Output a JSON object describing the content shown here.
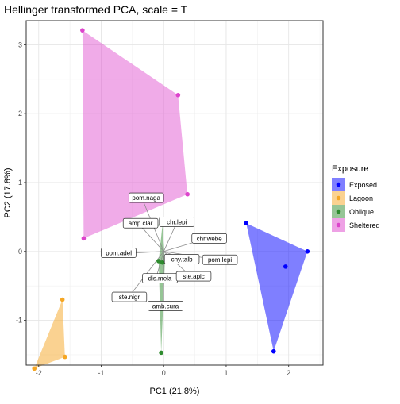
{
  "chart_data": {
    "type": "scatter",
    "title": "Hellinger transformed PCA, scale = T",
    "xlabel": "PC1 (21.8%)",
    "ylabel": "PC2 (17.8%)",
    "xlim": [
      -2.2,
      2.55
    ],
    "ylim": [
      -1.65,
      3.35
    ],
    "x_ticks": [
      -2,
      -1,
      0,
      1,
      2
    ],
    "y_ticks": [
      -1,
      0,
      1,
      2,
      3
    ],
    "grid": true,
    "legend": {
      "title": "Exposure",
      "position": "right",
      "entries": [
        "Exposed",
        "Lagoon",
        "Oblique",
        "Sheltered"
      ]
    },
    "series": [
      {
        "name": "Exposed",
        "color": "#0000ff",
        "points": [
          [
            1.32,
            0.41
          ],
          [
            2.3,
            0.0
          ],
          [
            1.95,
            -0.22
          ],
          [
            1.76,
            -1.45
          ]
        ]
      },
      {
        "name": "Lagoon",
        "color": "#f5a623",
        "points": [
          [
            -1.62,
            -0.7
          ],
          [
            -1.58,
            -1.53
          ],
          [
            -2.07,
            -1.7
          ]
        ]
      },
      {
        "name": "Oblique",
        "color": "#2e8b2e",
        "points": [
          [
            -0.12,
            0.38
          ],
          [
            -0.08,
            -0.14
          ],
          [
            -0.02,
            -0.16
          ],
          [
            -0.04,
            -1.47
          ]
        ]
      },
      {
        "name": "Sheltered",
        "color": "#dd44cc",
        "points": [
          [
            -1.3,
            3.21
          ],
          [
            0.23,
            2.27
          ],
          [
            0.38,
            0.83
          ],
          [
            -1.28,
            0.19
          ]
        ]
      }
    ],
    "hulls": [
      {
        "series": "Exposed",
        "points": [
          [
            1.32,
            0.41
          ],
          [
            2.3,
            0.0
          ],
          [
            1.76,
            -1.45
          ]
        ],
        "fill": "#0000ff",
        "opacity": 0.5
      },
      {
        "series": "Lagoon",
        "points": [
          [
            -1.62,
            -0.7
          ],
          [
            -1.58,
            -1.53
          ],
          [
            -2.07,
            -1.7
          ]
        ],
        "fill": "#f5a623",
        "opacity": 0.5
      },
      {
        "series": "Oblique",
        "points": [
          [
            -0.02,
            0.38
          ],
          [
            0.02,
            -0.14
          ],
          [
            -0.04,
            -1.47
          ],
          [
            -0.08,
            -0.14
          ]
        ],
        "fill": "#2e8b2e",
        "opacity": 0.5
      },
      {
        "series": "Sheltered",
        "points": [
          [
            -1.3,
            3.21
          ],
          [
            0.23,
            2.27
          ],
          [
            0.38,
            0.83
          ],
          [
            -1.28,
            0.19
          ]
        ],
        "fill": "#dd44cc",
        "opacity": 0.45
      }
    ],
    "loadings": [
      {
        "label": "pom.naga",
        "x": -0.35,
        "y": 0.78
      },
      {
        "label": "amp.clar",
        "x": -0.42,
        "y": 0.42
      },
      {
        "label": "chr.lepi",
        "x": 0.22,
        "y": 0.44
      },
      {
        "label": "chr.webe",
        "x": 0.55,
        "y": 0.15
      },
      {
        "label": "pom.adel",
        "x": -0.62,
        "y": -0.03
      },
      {
        "label": "chy.talb",
        "x": 0.28,
        "y": -0.1
      },
      {
        "label": "pom.lepi",
        "x": 0.78,
        "y": -0.11
      },
      {
        "label": "dis.mela",
        "x": -0.12,
        "y": -0.38
      },
      {
        "label": "ste.apic",
        "x": 0.42,
        "y": -0.35
      },
      {
        "label": "ste.nigr",
        "x": -0.55,
        "y": -0.65
      },
      {
        "label": "amb.cura",
        "x": 0.0,
        "y": -0.78
      }
    ],
    "loading_label_positions": [
      {
        "label": "pom.naga",
        "x": -0.28,
        "y": 0.78
      },
      {
        "label": "amp.clar",
        "x": -0.37,
        "y": 0.41
      },
      {
        "label": "chr.lepi",
        "x": 0.21,
        "y": 0.43
      },
      {
        "label": "chr.webe",
        "x": 0.73,
        "y": 0.19
      },
      {
        "label": "pom.adel",
        "x": -0.72,
        "y": -0.02
      },
      {
        "label": "chy.talb",
        "x": 0.29,
        "y": -0.11
      },
      {
        "label": "pom.lepi",
        "x": 0.9,
        "y": -0.12
      },
      {
        "label": "dis.mela",
        "x": -0.06,
        "y": -0.39
      },
      {
        "label": "ste.apic",
        "x": 0.48,
        "y": -0.36
      },
      {
        "label": "ste.nigr",
        "x": -0.55,
        "y": -0.66
      },
      {
        "label": "amb.cura",
        "x": 0.03,
        "y": -0.79
      }
    ]
  }
}
